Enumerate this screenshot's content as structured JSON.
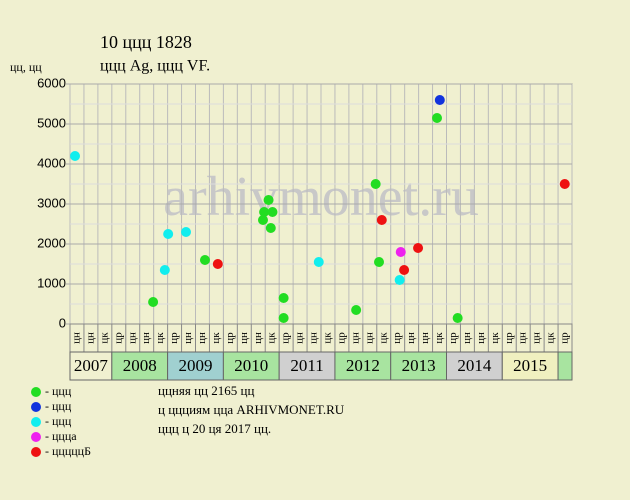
{
  "chart_data": {
    "type": "scatter",
    "title": "10 ццц 1828",
    "subtitle": "ццц Ag, ццц VF.",
    "y_label": "цц, цц",
    "watermark": "arhivmonet.ru",
    "xlim": [
      2007.25,
      2016.25
    ],
    "ylim": [
      0,
      6000
    ],
    "yticks": [
      0,
      1000,
      2000,
      3000,
      4000,
      5000,
      6000
    ],
    "grid": true,
    "column_labels": [
      "цн",
      "цн",
      "цк",
      "цр",
      "цн",
      "цн",
      "цк",
      "цр",
      "цн",
      "цн",
      "цк",
      "цр",
      "цн",
      "цн",
      "цк",
      "цр",
      "цн",
      "цн",
      "цк",
      "цр",
      "цн",
      "цн",
      "цк",
      "цр",
      "цн",
      "цн",
      "цк",
      "цр",
      "цн",
      "цн",
      "цк",
      "цр",
      "цн",
      "цн",
      "цк",
      "цр"
    ],
    "years": [
      {
        "label": "2007",
        "start": 2007,
        "color": "#f0f0d0"
      },
      {
        "label": "2008",
        "start": 2008,
        "color": "#a8e4a0"
      },
      {
        "label": "2009",
        "start": 2009,
        "color": "#a0d0d0"
      },
      {
        "label": "2010",
        "start": 2010,
        "color": "#a8e4a0"
      },
      {
        "label": "2011",
        "start": 2011,
        "color": "#d0d0d0"
      },
      {
        "label": "2012",
        "start": 2012,
        "color": "#a8e4a0"
      },
      {
        "label": "2013",
        "start": 2013,
        "color": "#a8e4a0"
      },
      {
        "label": "2014",
        "start": 2014,
        "color": "#d0d0d0"
      },
      {
        "label": "2015",
        "start": 2015,
        "color": "#f0f0c0"
      },
      {
        "label": null,
        "start": 2016,
        "color": "#a8e4a0"
      }
    ],
    "series": [
      {
        "name": "- ццц",
        "color": "#22dd22",
        "x": [
          2008.74,
          2009.67,
          2010.71,
          2010.73,
          2010.81,
          2010.88,
          2010.85,
          2011.08,
          2011.08,
          2012.38,
          2012.73,
          2012.79,
          2013.83,
          2014.2
        ],
        "values": [
          550,
          1600,
          2600,
          2800,
          3100,
          2800,
          2400,
          650,
          150,
          350,
          3500,
          1550,
          5150,
          150
        ]
      },
      {
        "name": "- ццц",
        "color": "#1133dd",
        "x": [
          2013.88
        ],
        "values": [
          5600
        ]
      },
      {
        "name": "- ццц",
        "color": "#11eeee",
        "x": [
          2007.34,
          2008.95,
          2009.01,
          2009.33,
          2011.71,
          2013.16
        ],
        "values": [
          4200,
          1350,
          2250,
          2300,
          1550,
          1100
        ]
      },
      {
        "name": "- ццца",
        "color": "#ee22ee",
        "x": [
          2013.18
        ],
        "values": [
          1800
        ]
      },
      {
        "name": "- цццццБ",
        "color": "#ee1111",
        "x": [
          2009.9,
          2012.84,
          2013.24,
          2013.49,
          2016.12
        ],
        "values": [
          1500,
          2600,
          1350,
          1900,
          3500
        ]
      }
    ],
    "notes": [
      "ццняя цц 2165 цц",
      "ц ццциям цца ARHIVMONET.RU",
      "ццц ц 20 ця 2017 цц."
    ]
  }
}
